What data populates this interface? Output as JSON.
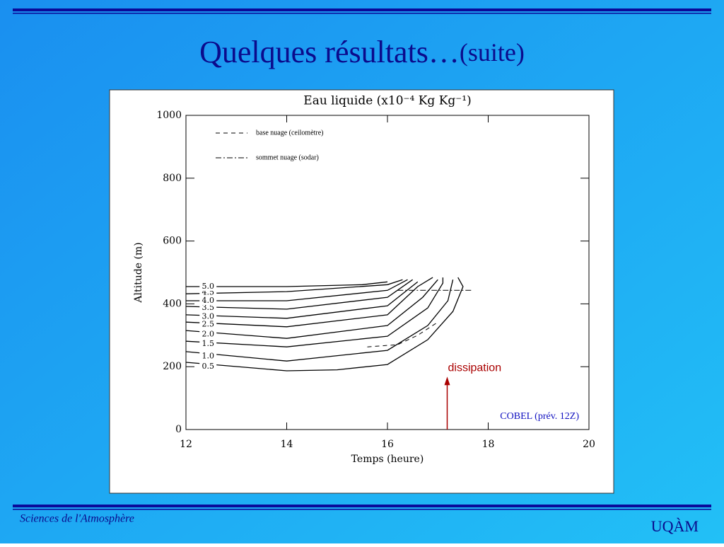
{
  "slide": {
    "title": "Quelques résultats…",
    "title_suffix": "(suite)",
    "footer_left": "Sciences de l'Atmosphère",
    "footer_right": "UQÀM"
  },
  "chart_data": {
    "type": "contour",
    "title": "Eau liquide (x10⁻⁴ Kg Kg⁻¹)",
    "xlabel": "Temps (heure)",
    "ylabel": "Altitude (m)",
    "xlim": [
      12,
      20
    ],
    "xticks": [
      12,
      14,
      16,
      18,
      20
    ],
    "ylim": [
      0,
      1000
    ],
    "yticks": [
      0,
      200,
      400,
      600,
      800,
      1000
    ],
    "color": "#000000",
    "series": [
      {
        "name": "0.5",
        "x": [
          12,
          14,
          15,
          16,
          16.8,
          17.3,
          17.5,
          17.4
        ],
        "values": [
          214,
          187,
          190,
          207,
          286,
          376,
          455,
          484
        ]
      },
      {
        "name": "1.0",
        "x": [
          12,
          14,
          16,
          16.8,
          17.2,
          17.3
        ],
        "values": [
          248,
          218,
          252,
          331,
          410,
          477
        ]
      },
      {
        "name": "1.5",
        "x": [
          12,
          14,
          16,
          16.8,
          17.1,
          17.1
        ],
        "values": [
          281,
          263,
          297,
          387,
          466,
          484
        ]
      },
      {
        "name": "2.0",
        "x": [
          12,
          14,
          16,
          16.7,
          17.0
        ],
        "values": [
          315,
          290,
          331,
          421,
          477
        ]
      },
      {
        "name": "2.5",
        "x": [
          12,
          14,
          16,
          16.6,
          16.9
        ],
        "values": [
          342,
          327,
          365,
          455,
          484
        ]
      },
      {
        "name": "3.0",
        "x": [
          12,
          14,
          16,
          16.6
        ],
        "values": [
          365,
          354,
          394,
          470
        ]
      },
      {
        "name": "3.5",
        "x": [
          12,
          14,
          16,
          16.5
        ],
        "values": [
          392,
          383,
          421,
          477
        ]
      },
      {
        "name": "4.0",
        "x": [
          12,
          14,
          16,
          16.4
        ],
        "values": [
          410,
          410,
          443,
          477
        ]
      },
      {
        "name": "4.5",
        "x": [
          12,
          14,
          16,
          16.3
        ],
        "values": [
          432,
          439,
          461,
          477
        ]
      },
      {
        "name": "5.0",
        "x": [
          12,
          14,
          15.5,
          16
        ],
        "values": [
          455,
          455,
          461,
          470
        ]
      }
    ],
    "legend": [
      {
        "name": "base nuage (ceilomètre)",
        "dash": "6 5",
        "x": [
          15.6,
          16.2,
          16.6,
          17.0
        ],
        "values": [
          263,
          270,
          300,
          342
        ]
      },
      {
        "name": "sommet nuage (sodar)",
        "dash": "8 3 2 3",
        "x": [
          16.2,
          17.0,
          17.7
        ],
        "values": [
          443,
          443,
          443
        ]
      }
    ],
    "annotations": [
      {
        "text": "dissipation",
        "x": 17.2,
        "y": 200
      },
      {
        "text": "COBEL (prév. 12Z)"
      }
    ]
  }
}
